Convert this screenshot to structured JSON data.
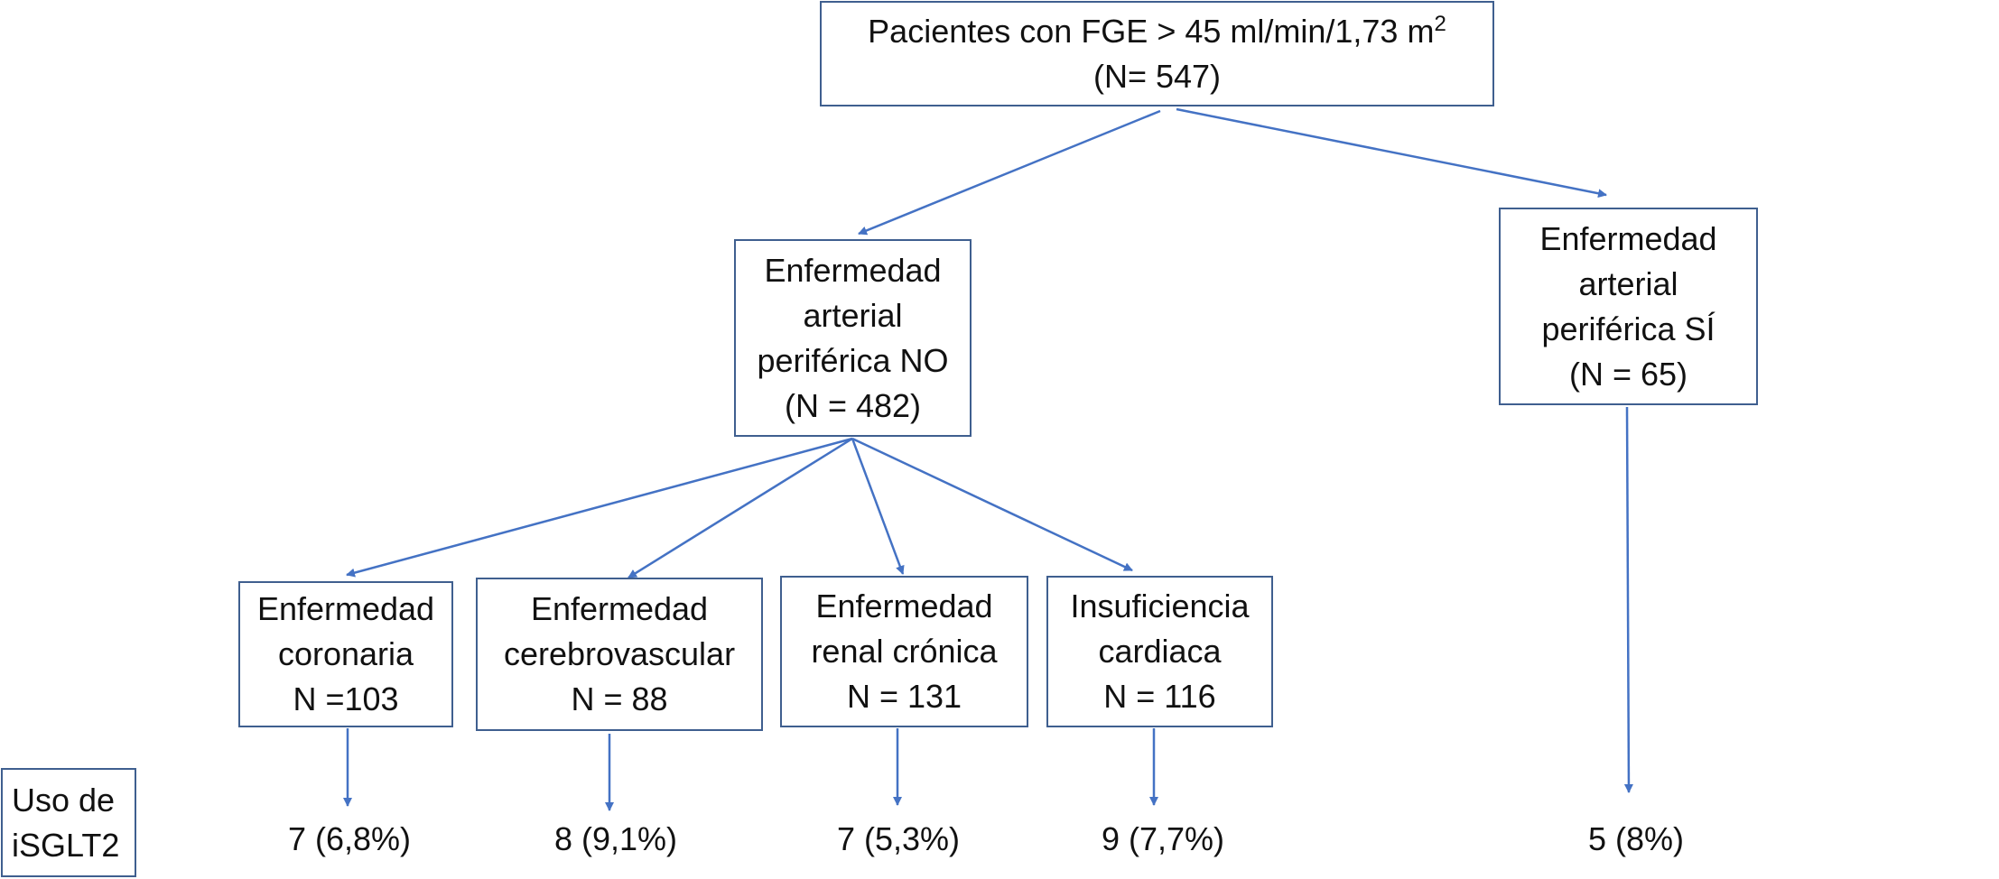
{
  "colors": {
    "box_border": "#3f5f8f",
    "arrow": "#4472c4",
    "text": "#111111"
  },
  "root": {
    "line1": "Pacientes con FGE > 45 ml/min/1,73 m",
    "superscript": "2",
    "line2": "(N= 547)"
  },
  "pad_no": {
    "lines": [
      "Enfermedad",
      "arterial",
      "periférica NO",
      "(N = 482)"
    ]
  },
  "pad_si": {
    "lines": [
      "Enfermedad",
      "arterial",
      "periférica SÍ",
      "(N = 65)"
    ]
  },
  "subgroups": [
    {
      "lines": [
        "Enfermedad",
        "coronaria",
        "N =103"
      ],
      "isglt2": "7 (6,8%)"
    },
    {
      "lines": [
        "Enfermedad",
        "cerebrovascular",
        "N = 88"
      ],
      "isglt2": "8 (9,1%)"
    },
    {
      "lines": [
        "Enfermedad",
        "renal crónica",
        "N = 131"
      ],
      "isglt2": "7 (5,3%)"
    },
    {
      "lines": [
        "Insuficiencia",
        "cardiaca",
        "N = 116"
      ],
      "isglt2": "9 (7,7%)"
    }
  ],
  "pad_si_isglt2": "5 (8%)",
  "row_label": {
    "lines": [
      "Uso de",
      "iSGLT2"
    ]
  }
}
